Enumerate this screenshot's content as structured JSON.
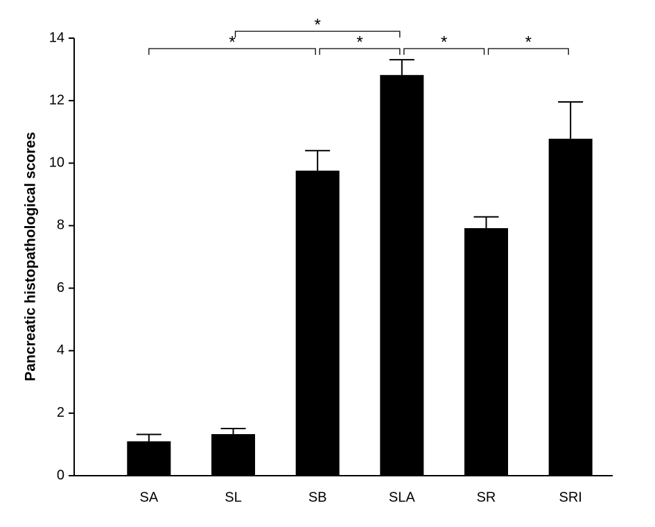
{
  "chart_data": {
    "type": "bar",
    "y_label": "Pancreatic histopathological scores",
    "categories": [
      "SA",
      "SL",
      "SB",
      "SLA",
      "SR",
      "SRI"
    ],
    "values": [
      1.1,
      1.33,
      9.76,
      12.82,
      7.92,
      10.78
    ],
    "errors": [
      0.22,
      0.18,
      0.64,
      0.49,
      0.36,
      1.18
    ],
    "color": "#000000",
    "ylim": [
      0,
      14
    ],
    "yticks": [
      0,
      2,
      4,
      6,
      8,
      10,
      12,
      14
    ],
    "significance": [
      {
        "groups": [
          "SA",
          "SB"
        ],
        "label": "*"
      },
      {
        "groups": [
          "SL",
          "SLA"
        ],
        "label": "*"
      },
      {
        "groups": [
          "SB",
          "SLA"
        ],
        "label": "*"
      },
      {
        "groups": [
          "SLA",
          "SR"
        ],
        "label": "*"
      },
      {
        "groups": [
          "SR",
          "SRI"
        ],
        "label": "*"
      }
    ]
  }
}
